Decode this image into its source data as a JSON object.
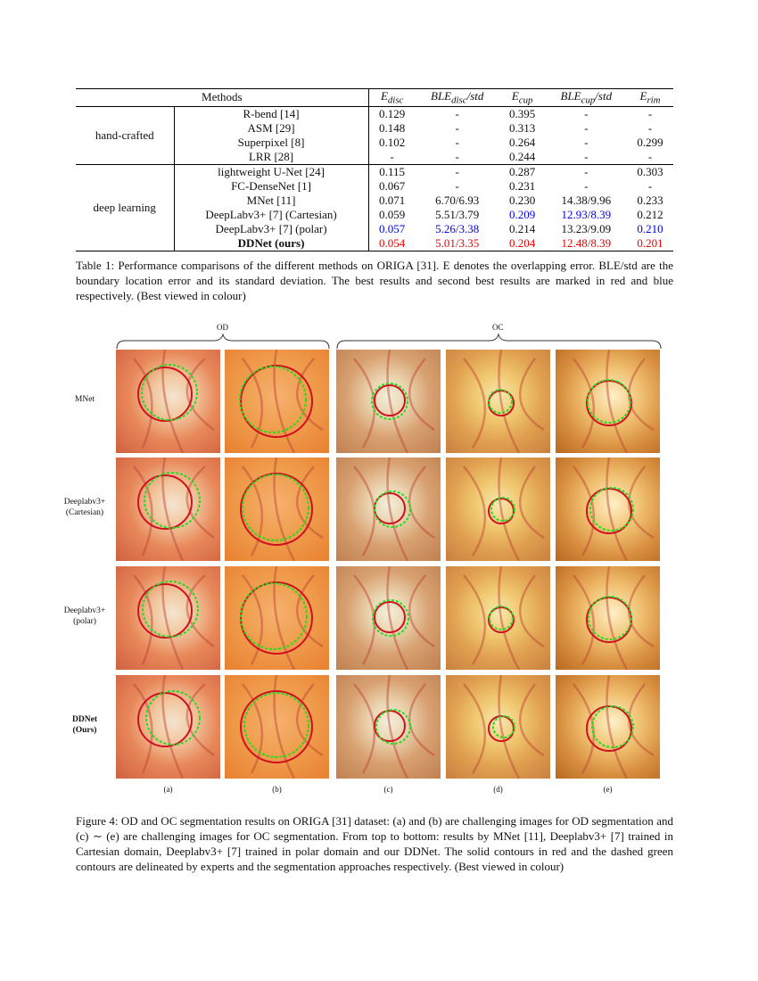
{
  "table": {
    "headers": [
      "Methods",
      "E_disc",
      "BLE_disc/std",
      "E_cup",
      "BLE_cup/std",
      "E_rim"
    ],
    "groups": [
      {
        "name": "hand-crafted",
        "rows": [
          [
            "R-bend [14]",
            "0.129",
            "-",
            "0.395",
            "-",
            "-"
          ],
          [
            "ASM [29]",
            "0.148",
            "-",
            "0.313",
            "-",
            "-"
          ],
          [
            "Superpixel [8]",
            "0.102",
            "-",
            "0.264",
            "-",
            "0.299"
          ],
          [
            "LRR [28]",
            "-",
            "-",
            "0.244",
            "-",
            "-"
          ]
        ]
      },
      {
        "name": "deep learning",
        "rows": [
          [
            "lightweight U-Net [24]",
            "0.115",
            "-",
            "0.287",
            "-",
            "0.303"
          ],
          [
            "FC-DenseNet [1]",
            "0.067",
            "-",
            "0.231",
            "-",
            "-"
          ],
          [
            "MNet [11]",
            "0.071",
            "6.70/6.93",
            "0.230",
            "14.38/9.96",
            "0.233"
          ],
          [
            "DeepLabv3+ [7] (Cartesian)",
            "0.059",
            "5.51/3.79",
            "0.209",
            "12.93/8.39",
            "0.212"
          ],
          [
            "DeepLabv3+ [7] (polar)",
            "0.057",
            "5.26/3.38",
            "0.214",
            "13.23/9.09",
            "0.210"
          ],
          [
            "DDNet (ours)",
            "0.054",
            "5.01/3.35",
            "0.204",
            "12.48/8.39",
            "0.201"
          ]
        ]
      }
    ],
    "colors": {
      "best": "#ee0000",
      "second": "#0000ee"
    }
  },
  "table_caption": "Table 1: Performance comparisons of the different methods on ORIGA [31]. E denotes the overlapping error. BLE/std are the boundary location error and its standard deviation. The best results and second best results are marked in red and blue respectively. (Best viewed in colour)",
  "figure": {
    "brace_labels": [
      "OD",
      "OC"
    ],
    "row_labels": [
      "MNet",
      "Deeplabv3+\n(Cartesian)",
      "Deeplabv3+\n(polar)",
      "DDNet\n(Ours)"
    ],
    "col_labels": [
      "(a)",
      "(b)",
      "(c)",
      "(d)",
      "(e)"
    ],
    "caption": "Figure 4: OD and OC segmentation results on ORIGA [31] dataset: (a) and (b) are challenging images for OD segmentation and (c) ∼ (e) are challenging images for OC segmentation. From top to bottom: results by MNet [11], Deeplabv3+ [7] trained in Cartesian domain, Deeplabv3+ [7] trained in polar domain and our DDNet. The solid contours in red and the dashed green contours are delineated by experts and the segmentation approaches respectively. (Best viewed in colour)",
    "contour_colors": {
      "expert": "#d01020",
      "method": "#22dd22"
    }
  }
}
